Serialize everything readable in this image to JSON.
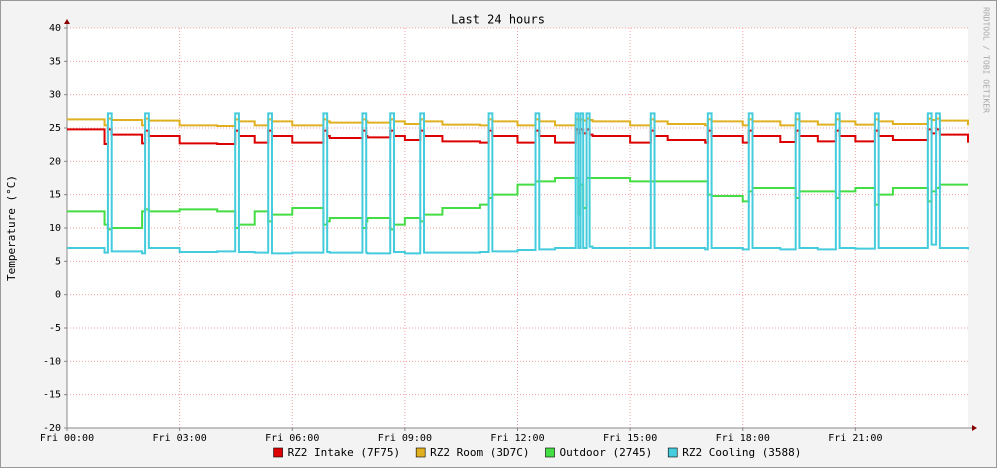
{
  "chart_data": {
    "type": "line",
    "title": "Last 24 hours",
    "y_label": "Temperature (°C)",
    "watermark": "RRDTOOL / TOBI OETIKER",
    "grid": true,
    "legend": "bottom",
    "xlim": [
      0,
      24
    ],
    "ylim": [
      -20,
      40
    ],
    "xticks": [
      {
        "value": 0,
        "label": "Fri 00:00"
      },
      {
        "value": 3,
        "label": "Fri 03:00"
      },
      {
        "value": 6,
        "label": "Fri 06:00"
      },
      {
        "value": 9,
        "label": "Fri 09:00"
      },
      {
        "value": 12,
        "label": "Fri 12:00"
      },
      {
        "value": 15,
        "label": "Fri 15:00"
      },
      {
        "value": 18,
        "label": "Fri 18:00"
      },
      {
        "value": 21,
        "label": "Fri 21:00"
      }
    ],
    "yticks": [
      -20,
      -15,
      -10,
      -5,
      0,
      5,
      10,
      15,
      20,
      25,
      30,
      35,
      40
    ],
    "x": [
      0,
      1,
      1.09,
      1.19,
      2,
      2.08,
      2.18,
      3,
      4,
      4.48,
      4.58,
      5,
      5.36,
      5.46,
      6,
      6.83,
      6.93,
      7,
      7.87,
      7.97,
      8,
      8.61,
      8.71,
      9,
      9.41,
      9.51,
      10,
      11,
      11.23,
      11.33,
      12,
      12.48,
      12.58,
      13,
      13.55,
      13.62,
      13.68,
      13.75,
      13.84,
      13.92,
      14,
      15,
      15.55,
      15.65,
      16,
      17,
      17.07,
      17.17,
      18,
      18.16,
      18.26,
      19,
      19.41,
      19.51,
      20,
      20.48,
      20.58,
      21,
      21.52,
      21.62,
      22,
      22.93,
      23.03,
      23.15,
      23.25,
      24
    ],
    "series": [
      {
        "name": "RZ2 Intake (7F75)",
        "color": "#dd0000",
        "values": [
          24.8,
          22.6,
          24.8,
          24,
          22.7,
          24.6,
          23.8,
          22.7,
          22.6,
          24.6,
          23.8,
          22.8,
          24.6,
          23.8,
          22.8,
          24.6,
          23.8,
          23.5,
          24.6,
          23.8,
          23.6,
          24.6,
          23.8,
          23.2,
          24.6,
          23.8,
          23,
          22.8,
          24.6,
          23.8,
          22.8,
          24.6,
          23.8,
          22.8,
          24.8,
          24.2,
          24.8,
          24.2,
          24.8,
          24,
          23.8,
          22.8,
          24.6,
          23.8,
          23.2,
          22.8,
          24.6,
          23.8,
          22.8,
          24.6,
          23.8,
          22.9,
          24.6,
          23.8,
          23,
          24.6,
          23.8,
          23,
          24.6,
          23.8,
          23.2,
          24.8,
          24.2,
          24.8,
          24,
          22.8
        ]
      },
      {
        "name": "RZ2 Room (3D7C)",
        "color": "#e0b020",
        "values": [
          26.3,
          25.4,
          26.4,
          26.2,
          25.4,
          26.4,
          26.1,
          25.4,
          25.3,
          26.3,
          26,
          25.4,
          26.3,
          26,
          25.4,
          26.3,
          26,
          25.8,
          26.3,
          26,
          25.8,
          26.3,
          26,
          25.6,
          26.3,
          26,
          25.5,
          25.4,
          26.3,
          26,
          25.4,
          26.3,
          26,
          25.4,
          26.3,
          26.1,
          26.3,
          26.1,
          26.4,
          26.2,
          26,
          25.4,
          26.3,
          26,
          25.6,
          25.4,
          26.3,
          26,
          25.4,
          26.3,
          26,
          25.4,
          26.3,
          26,
          25.5,
          26.3,
          26,
          25.5,
          26.3,
          26,
          25.6,
          26.4,
          26.2,
          26.4,
          26.1,
          25.4
        ]
      },
      {
        "name": "Outdoor (2745)",
        "color": "#44dd44",
        "values": [
          12.5,
          10.5,
          9.8,
          10,
          12.5,
          12.8,
          12.5,
          12.8,
          12.5,
          10,
          10.5,
          12.5,
          11,
          12,
          13,
          10.5,
          11,
          11.5,
          10,
          11,
          11.5,
          9.8,
          10.5,
          11.5,
          11,
          12,
          13,
          13.5,
          14.5,
          15,
          16.5,
          17,
          17,
          17.5,
          17.5,
          12,
          16.5,
          13,
          17.5,
          17.5,
          17.5,
          17,
          17,
          17,
          17,
          17,
          15,
          14.8,
          14,
          15.5,
          16,
          16,
          14.5,
          15.5,
          15.5,
          14.5,
          15.5,
          16,
          13.5,
          15,
          16,
          14,
          15.5,
          16,
          16.5,
          16.5
        ]
      },
      {
        "name": "RZ2 Cooling (3588)",
        "color": "#44ccdd",
        "values": [
          7,
          6.3,
          27.2,
          6.5,
          6.2,
          27.2,
          7,
          6.4,
          6.5,
          27.2,
          6.4,
          6.3,
          27.2,
          6.2,
          6.3,
          27.2,
          6.4,
          6.3,
          27.2,
          6.3,
          6.2,
          27.2,
          6.4,
          6.2,
          27.2,
          6.3,
          6.3,
          6.4,
          27.2,
          6.5,
          6.7,
          27.2,
          6.8,
          7,
          27.2,
          7,
          27.2,
          7,
          27.2,
          7.2,
          7,
          7,
          27.2,
          7,
          7,
          6.8,
          27.2,
          7,
          6.8,
          27.2,
          7,
          6.8,
          27.2,
          7,
          6.8,
          27.2,
          7,
          6.9,
          27.2,
          7,
          7,
          27.2,
          7.5,
          27.2,
          7,
          6.8
        ]
      }
    ]
  }
}
